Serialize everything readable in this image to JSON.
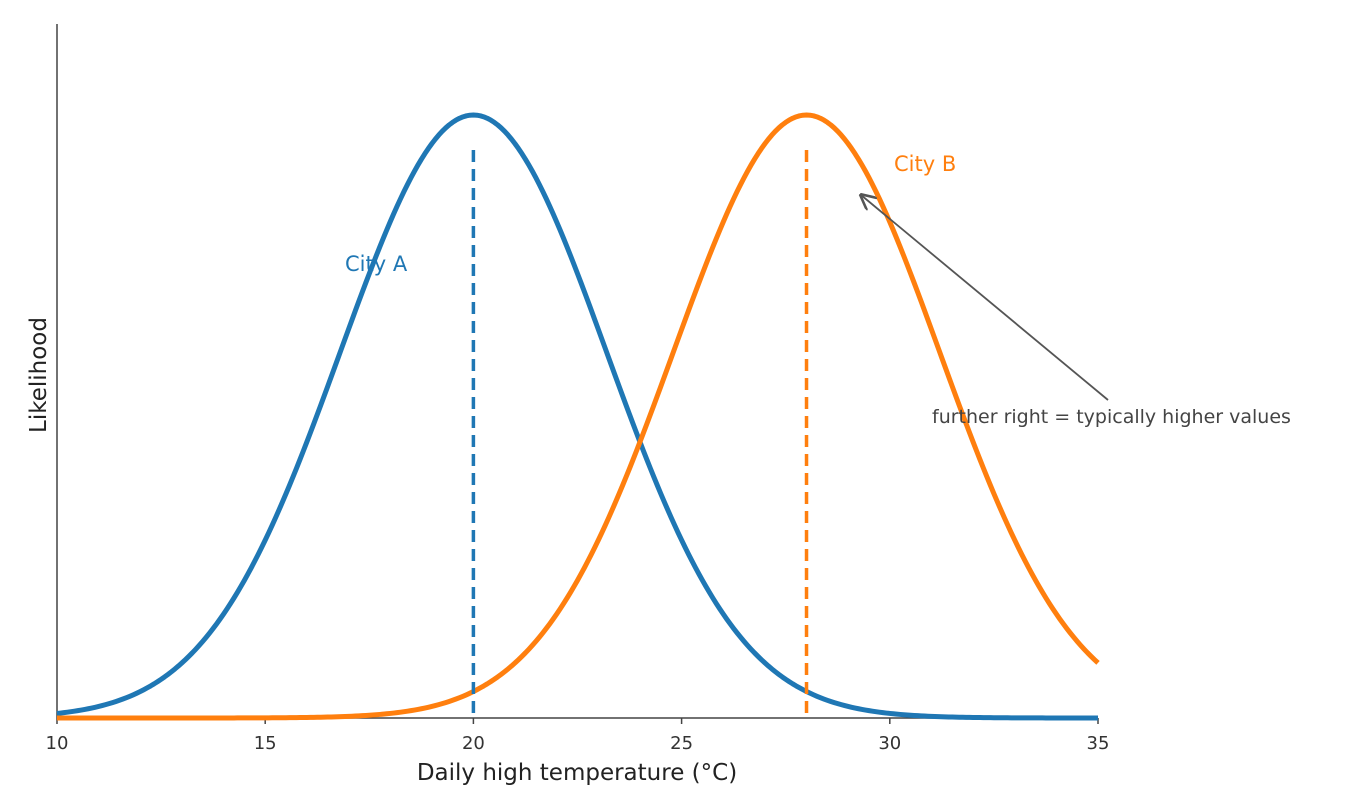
{
  "chart_data": {
    "type": "line",
    "title": "",
    "xlabel": "Daily high temperature (°C)",
    "ylabel": "Likelihood",
    "xlim": [
      10,
      35
    ],
    "xticks": [
      10,
      15,
      20,
      25,
      30,
      35
    ],
    "ylim": [
      0,
      1.0
    ],
    "grid": false,
    "legend": "none",
    "series": [
      {
        "name": "City A",
        "distribution": "normal",
        "mean": 20,
        "sd": 3.2,
        "color": "#1f77b4",
        "mean_line": "dashed"
      },
      {
        "name": "City B",
        "distribution": "normal",
        "mean": 28,
        "sd": 3.2,
        "color": "#ff7f0e",
        "mean_line": "dashed"
      }
    ],
    "annotation": {
      "text": "further right = typically higher values",
      "color": "#555555"
    }
  }
}
